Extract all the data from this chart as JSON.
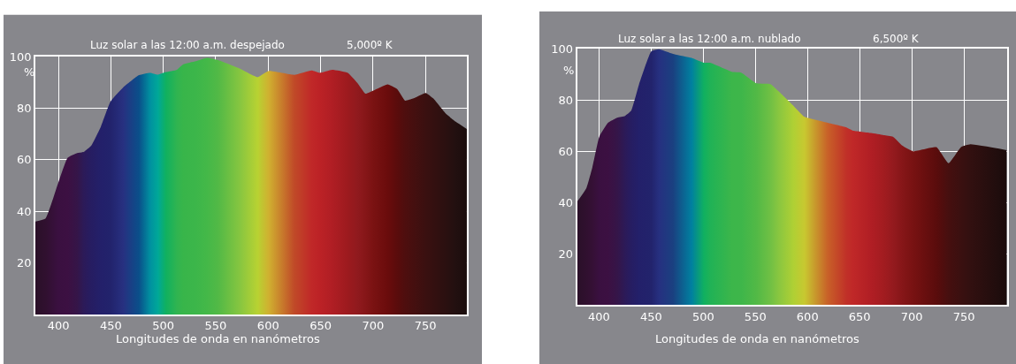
{
  "chart_data": [
    {
      "type": "area",
      "title": "Luz solar a las 12:00 a.m. despejado",
      "subtitle": "5,000º K",
      "xlabel": "Longitudes de onda en nanómetros",
      "ylabel": "%",
      "x": [
        378,
        387.7,
        399.8,
        408.8,
        418,
        424,
        431.5,
        440.5,
        449.6,
        461.7,
        476.8,
        487.4,
        494.9,
        502.5,
        513,
        519,
        531,
        541.7,
        552.3,
        573.5,
        590,
        600.6,
        624.8,
        641.4,
        649,
        661,
        676,
        685,
        692.8,
        700.4,
        714,
        723,
        730.6,
        738,
        750.2,
        757.6,
        769.8,
        778.9,
        789.4
      ],
      "series": [
        {
          "values": [
            36,
            37.2,
            51,
            60.8,
            62.6,
            63,
            65.6,
            72.9,
            82.5,
            88,
            92.8,
            93.7,
            93,
            94,
            94.9,
            97,
            98.2,
            99.5,
            98.6,
            95.2,
            92,
            94.4,
            92.9,
            94.6,
            93.7,
            94.9,
            93.7,
            89.8,
            85.6,
            86.8,
            89.2,
            87.4,
            82.9,
            83.7,
            85.9,
            83.7,
            77.7,
            74.7,
            71.9
          ],
          "colors": [
            "#2a1028",
            "#30102f",
            "#3a1040",
            "#3c1042",
            "#351548",
            "#2c1a58",
            "#261d62",
            "#23206a",
            "#22236c",
            "#273080",
            "#0a4f8a",
            "#0090a0",
            "#00a898",
            "#10b060",
            "#30b450",
            "#38b54a",
            "#3cb64a",
            "#44b848",
            "#52b946",
            "#88c640",
            "#b8d232",
            "#d0b030",
            "#c04a28",
            "#c02828",
            "#bc2226",
            "#b01e24",
            "#9c1a1e",
            "#901a1e",
            "#861618",
            "#7a1212",
            "#6a0c0c",
            "#5a0c0c",
            "#4e0e0e",
            "#460f0f",
            "#3a1010",
            "#341010",
            "#2a1010",
            "#221010",
            "#1a0c0c"
          ]
        }
      ],
      "xlim": [
        378,
        789.5
      ],
      "xticks": [
        400,
        450,
        500,
        550,
        600,
        650,
        700,
        750
      ],
      "ylim": [
        0,
        100
      ],
      "yticks": [
        20,
        40,
        60,
        80,
        100
      ],
      "grid": true
    },
    {
      "type": "area",
      "title": "Luz solar a las 12:00 a.m. nublado",
      "subtitle": "6,500º K",
      "xlabel": "Longitudes de onda en nanómetros",
      "ylabel": "%",
      "x": [
        378.9,
        387.8,
        393.7,
        400.3,
        408.6,
        417.5,
        425,
        430.9,
        438.3,
        450.2,
        457.6,
        471,
        488.8,
        500.6,
        506.6,
        527.4,
        536.3,
        551.2,
        564.5,
        572,
        586.8,
        597.2,
        619.5,
        637.3,
        643.3,
        661.1,
        673,
        681.9,
        690.8,
        701.2,
        723.5,
        735.3,
        747.2,
        756.1,
        791
      ],
      "series": [
        {
          "values": [
            40.2,
            45.5,
            53.8,
            65.7,
            71.1,
            73.1,
            73.8,
            75.8,
            85.9,
            99,
            99.8,
            98,
            96.4,
            94.5,
            94.5,
            91,
            90.7,
            86.5,
            86.2,
            83.5,
            77.6,
            73.4,
            71.1,
            69.3,
            68.1,
            67.1,
            66.3,
            65.7,
            62.2,
            60,
            61.6,
            55.3,
            61.6,
            62.7,
            60.4
          ],
          "colors": [
            "#2a1028",
            "#30102f",
            "#351035",
            "#3a1040",
            "#3c1042",
            "#351548",
            "#2c1a58",
            "#261d62",
            "#23206a",
            "#22236c",
            "#263080",
            "#1a4080",
            "#0080a0",
            "#10b060",
            "#20b256",
            "#3cb64a",
            "#3eb64a",
            "#52b946",
            "#70c044",
            "#88c640",
            "#b0d034",
            "#c8c830",
            "#c86028",
            "#c03028",
            "#c02828",
            "#b01e24",
            "#a21c20",
            "#941a1e",
            "#861618",
            "#781212",
            "#5a0c0c",
            "#460f0f",
            "#3a1010",
            "#321010",
            "#1a0c0c"
          ]
        }
      ],
      "xlim": [
        378.9,
        791
      ],
      "xticks": [
        400,
        450,
        500,
        550,
        600,
        650,
        700,
        750
      ],
      "ylim": [
        0,
        100
      ],
      "yticks": [
        20,
        40,
        60,
        80,
        100
      ],
      "grid": true
    }
  ]
}
